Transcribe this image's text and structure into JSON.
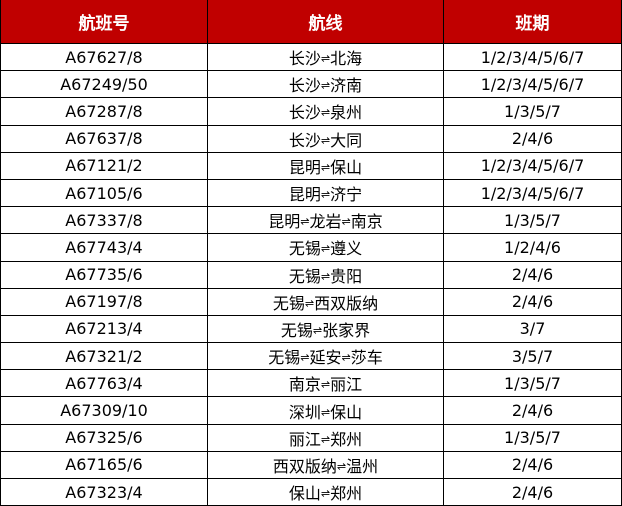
{
  "headers": [
    "航班号",
    "航线",
    "班期"
  ],
  "header_color": "#C00000",
  "separator": "⇌",
  "rows": [
    {
      "flight": "A67627/8",
      "route": [
        "长沙",
        "北海"
      ],
      "days": "1/2/3/4/5/6/7"
    },
    {
      "flight": "A67249/50",
      "route": [
        "长沙",
        "济南"
      ],
      "days": "1/2/3/4/5/6/7"
    },
    {
      "flight": "A67287/8",
      "route": [
        "长沙",
        "泉州"
      ],
      "days": "1/3/5/7"
    },
    {
      "flight": "A67637/8",
      "route": [
        "长沙",
        "大同"
      ],
      "days": "2/4/6"
    },
    {
      "flight": "A67121/2",
      "route": [
        "昆明",
        "保山"
      ],
      "days": "1/2/3/4/5/6/7"
    },
    {
      "flight": "A67105/6",
      "route": [
        "昆明",
        "济宁"
      ],
      "days": "1/2/3/4/5/6/7"
    },
    {
      "flight": "A67337/8",
      "route": [
        "昆明",
        "龙岩",
        "南京"
      ],
      "days": "1/3/5/7"
    },
    {
      "flight": "A67743/4",
      "route": [
        "无锡",
        "遵义"
      ],
      "days": "1/2/4/6"
    },
    {
      "flight": "A67735/6",
      "route": [
        "无锡",
        "贵阳"
      ],
      "days": "2/4/6"
    },
    {
      "flight": "A67197/8",
      "route": [
        "无锡",
        "西双版纳"
      ],
      "days": "2/4/6"
    },
    {
      "flight": "A67213/4",
      "route": [
        "无锡",
        "张家界"
      ],
      "days": "3/7"
    },
    {
      "flight": "A67321/2",
      "route": [
        "无锡",
        "延安",
        "莎车"
      ],
      "days": "3/5/7"
    },
    {
      "flight": "A67763/4",
      "route": [
        "南京",
        "丽江"
      ],
      "days": "1/3/5/7"
    },
    {
      "flight": "A67309/10",
      "route": [
        "深圳",
        "保山"
      ],
      "days": "2/4/6"
    },
    {
      "flight": "A67325/6",
      "route": [
        "丽江",
        "郑州"
      ],
      "days": "1/3/5/7"
    },
    {
      "flight": "A67165/6",
      "route": [
        "西双版纳",
        "温州"
      ],
      "days": "2/4/6"
    },
    {
      "flight": "A67323/4",
      "route": [
        "保山",
        "郑州"
      ],
      "days": "2/4/6"
    }
  ]
}
